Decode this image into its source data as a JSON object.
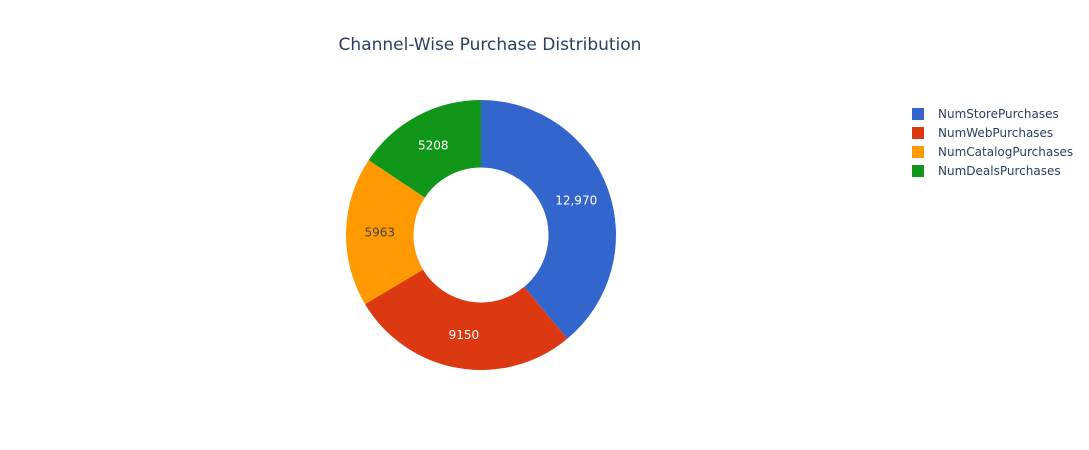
{
  "chart_data": {
    "type": "pie",
    "title": "Channel-Wise Purchase Distribution",
    "hole": 0.5,
    "sort": "descending",
    "direction": "clockwise",
    "legend_position": "top-right",
    "series": [
      {
        "name": "NumStorePurchases",
        "value": 12970,
        "label": "12,970",
        "color": "#3366cc",
        "label_color": "#ffffff"
      },
      {
        "name": "NumWebPurchases",
        "value": 9150,
        "label": "9150",
        "color": "#dc3912",
        "label_color": "#ffffff"
      },
      {
        "name": "NumCatalogPurchases",
        "value": 5963,
        "label": "5963",
        "color": "#ff9900",
        "label_color": "#444444"
      },
      {
        "name": "NumDealsPurchases",
        "value": 5208,
        "label": "5208",
        "color": "#109618",
        "label_color": "#ffffff"
      }
    ]
  }
}
